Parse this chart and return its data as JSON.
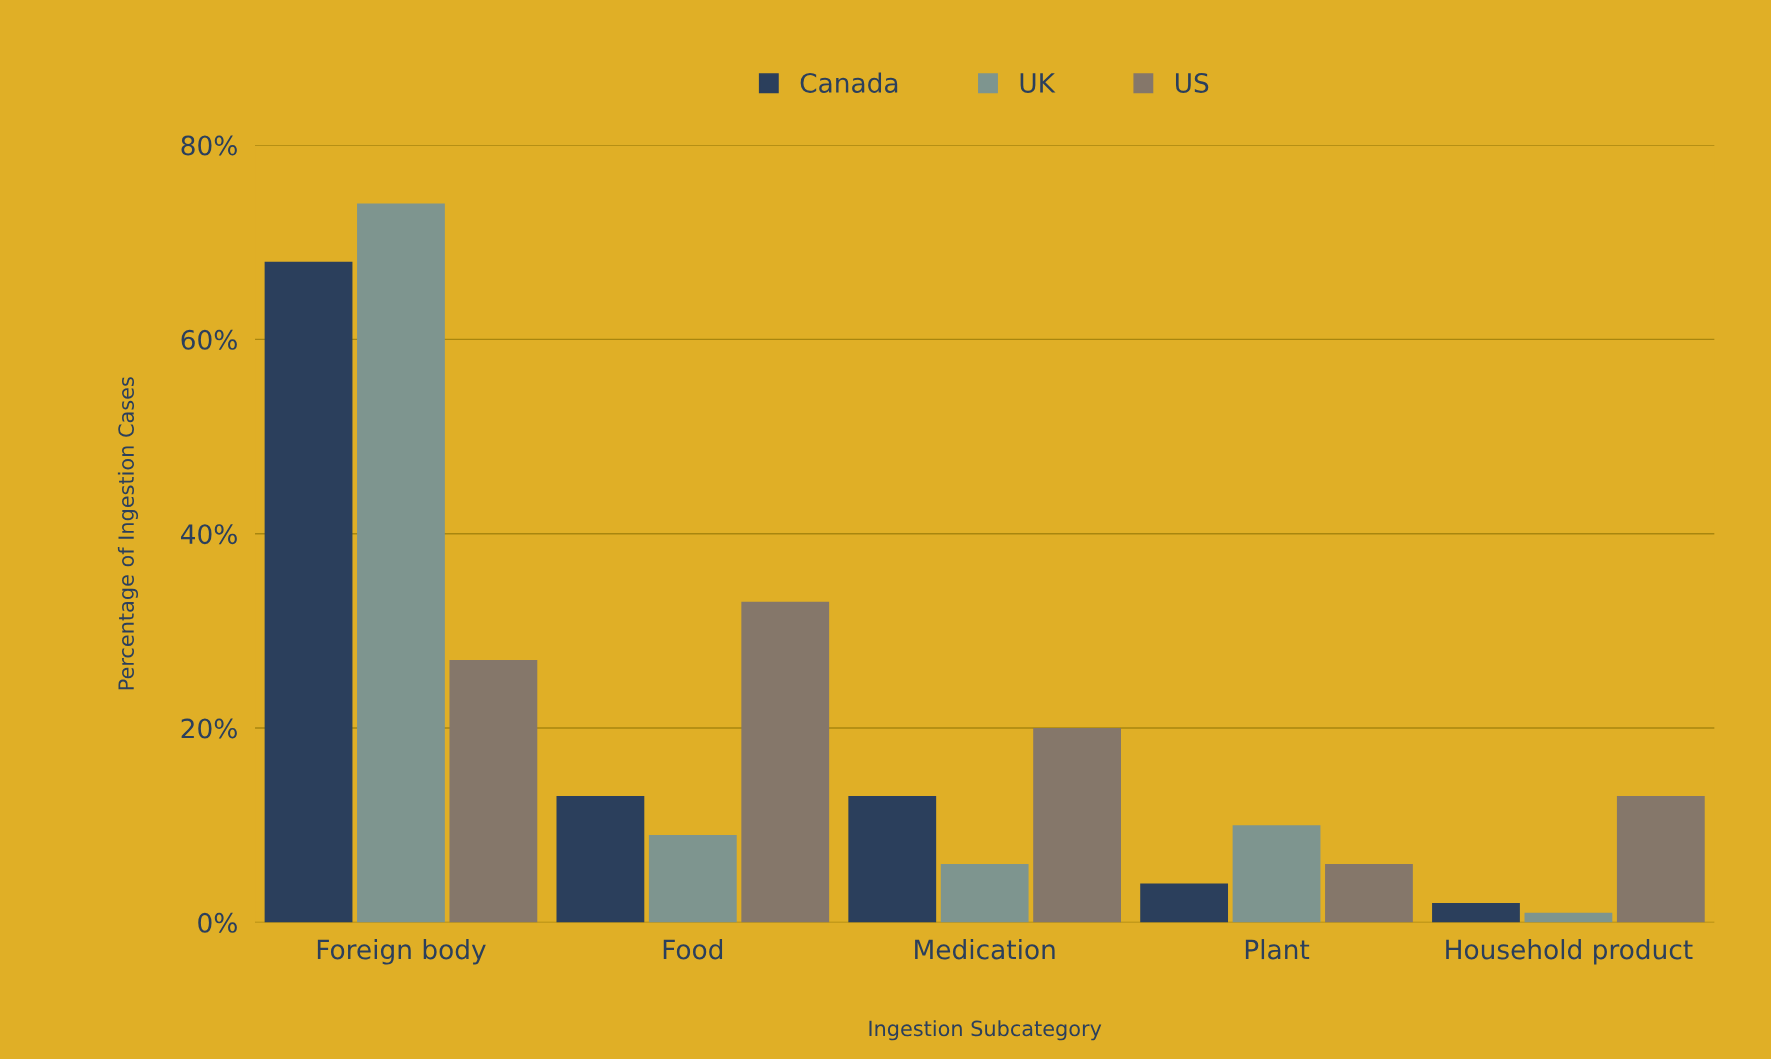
{
  "chart_data": {
    "type": "bar",
    "xlabel": "Ingestion Subcategory",
    "ylabel": "Percentage of Ingestion Cases",
    "categories": [
      "Foreign body",
      "Food",
      "Medication",
      "Plant",
      "Household product"
    ],
    "series": [
      {
        "name": "Canada",
        "color": "#2b3f5c",
        "values": [
          68,
          13,
          13,
          4,
          2
        ]
      },
      {
        "name": "UK",
        "color": "#7e958f",
        "values": [
          74,
          9,
          6,
          10,
          1
        ]
      },
      {
        "name": "US",
        "color": "#85776a",
        "values": [
          27,
          33,
          20,
          6,
          13
        ]
      }
    ],
    "ylim": [
      0,
      80
    ],
    "yticks": [
      {
        "value": 0,
        "label": "0%"
      },
      {
        "value": 20,
        "label": "20%"
      },
      {
        "value": 40,
        "label": "40%"
      },
      {
        "value": 60,
        "label": "60%"
      },
      {
        "value": 80,
        "label": "80%"
      }
    ],
    "grid": "y",
    "legend": "top"
  }
}
